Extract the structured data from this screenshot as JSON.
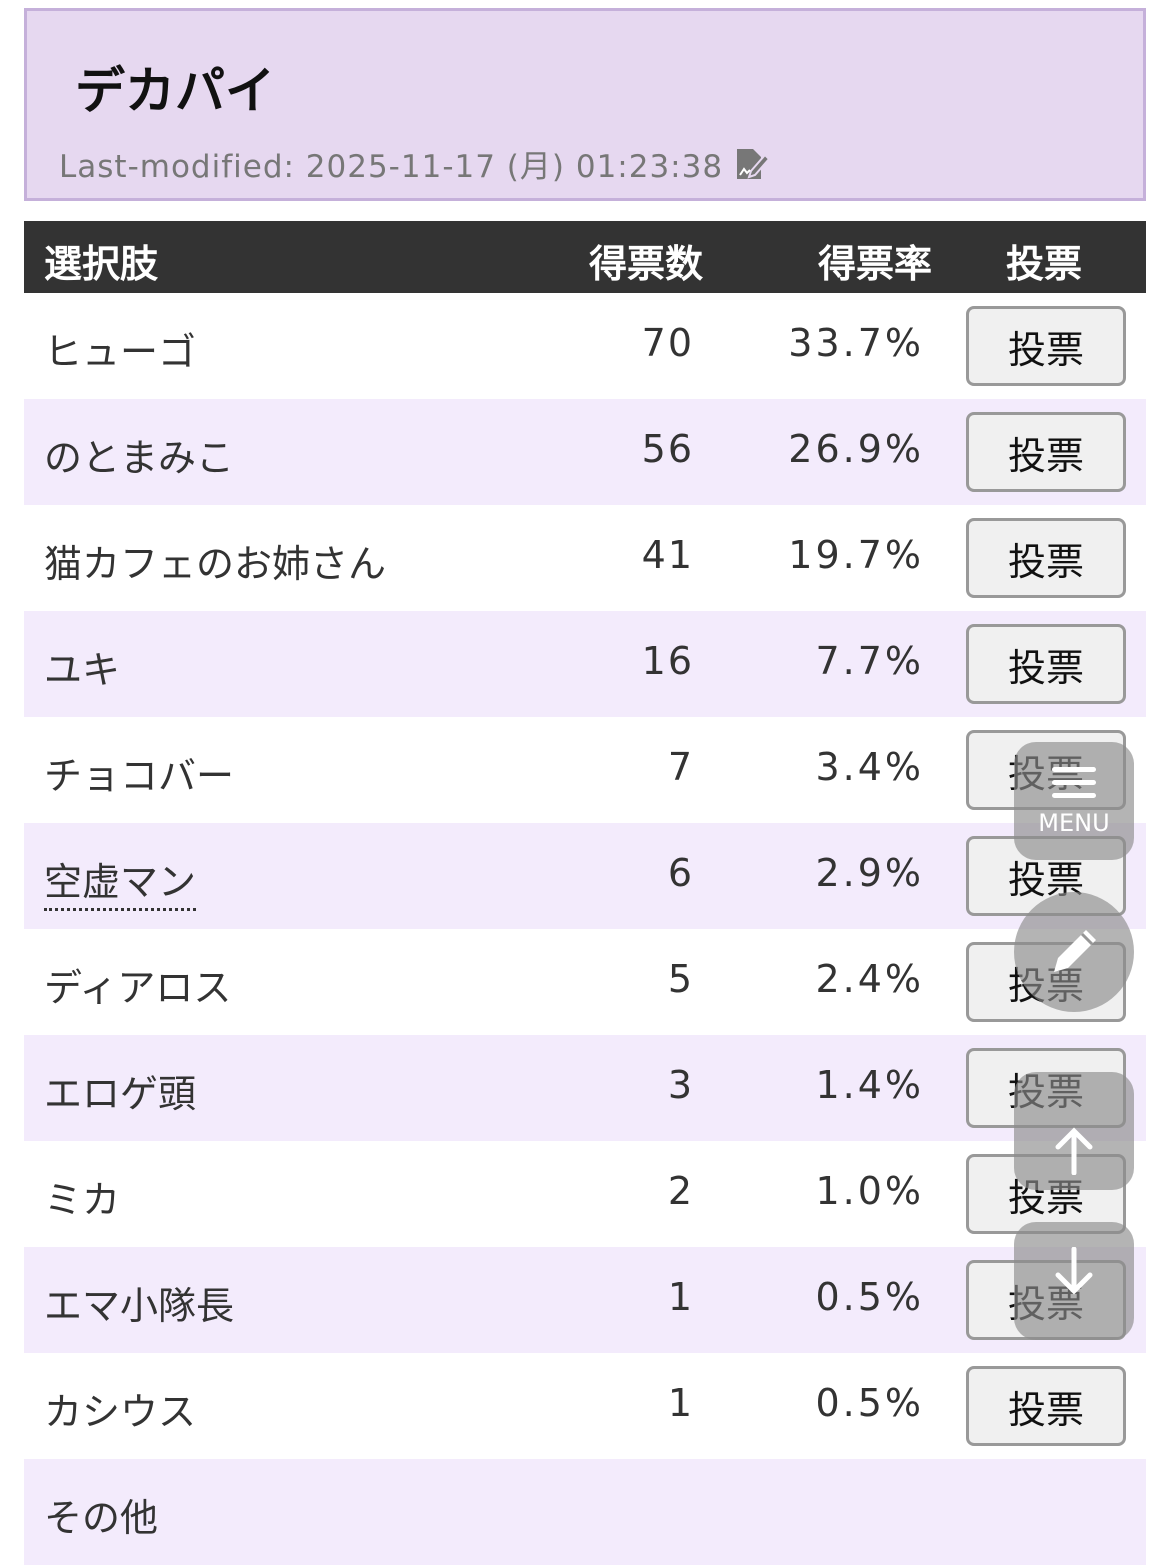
{
  "page": {
    "title": "デカパイ",
    "last_modified": "Last-modified: 2025-11-17 (月) 01:23:38"
  },
  "table": {
    "headers": {
      "choice": "選択肢",
      "votes": "得票数",
      "rate": "得票率",
      "vote": "投票"
    },
    "rows": [
      {
        "name": "ヒューゴ",
        "votes": "70",
        "rate": "33.7%",
        "button": "投票"
      },
      {
        "name": "のとまみこ",
        "votes": "56",
        "rate": "26.9%",
        "button": "投票"
      },
      {
        "name": "猫カフェのお姉さん",
        "votes": "41",
        "rate": "19.7%",
        "button": "投票"
      },
      {
        "name": "ユキ",
        "votes": "16",
        "rate": "7.7%",
        "button": "投票"
      },
      {
        "name": "チョコバー",
        "votes": "7",
        "rate": "3.4%",
        "button": "投票"
      },
      {
        "name": "空虚マン",
        "votes": "6",
        "rate": "2.9%",
        "button": "投票"
      },
      {
        "name": "ディアロス",
        "votes": "5",
        "rate": "2.4%",
        "button": "投票"
      },
      {
        "name": "エロゲ頭",
        "votes": "3",
        "rate": "1.4%",
        "button": "投票"
      },
      {
        "name": "ミカ",
        "votes": "2",
        "rate": "1.0%",
        "button": "投票"
      },
      {
        "name": "エマ小隊長",
        "votes": "1",
        "rate": "0.5%",
        "button": "投票"
      },
      {
        "name": "カシウス",
        "votes": "1",
        "rate": "0.5%",
        "button": "投票"
      },
      {
        "name": "その他"
      }
    ]
  },
  "floating": {
    "menu_label": "MENU",
    "icons": [
      "menu-icon",
      "pencil-icon",
      "arrow-up-icon",
      "arrow-down-icon"
    ]
  }
}
